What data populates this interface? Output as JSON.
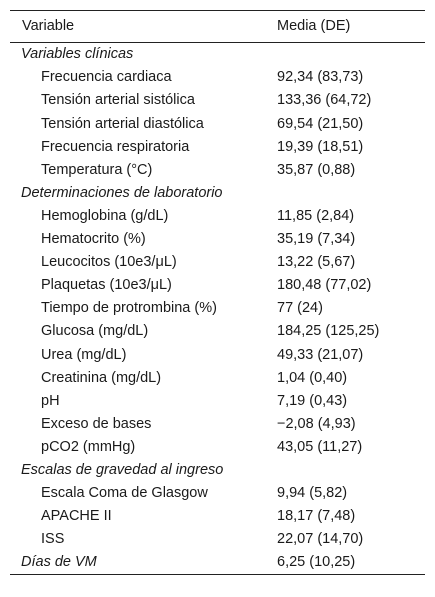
{
  "header": {
    "variable": "Variable",
    "value": "Media (DE)"
  },
  "sections": [
    {
      "title": "Variables clínicas",
      "rows": [
        {
          "label": "Frecuencia cardiaca",
          "value": "92,34 (83,73)"
        },
        {
          "label": "Tensión arterial sistólica",
          "value": "133,36 (64,72)"
        },
        {
          "label": "Tensión arterial diastólica",
          "value": "69,54 (21,50)"
        },
        {
          "label": "Frecuencia respiratoria",
          "value": "19,39 (18,51)"
        },
        {
          "label": "Temperatura (°C)",
          "value": "35,87 (0,88)"
        }
      ]
    },
    {
      "title": "Determinaciones de laboratorio",
      "rows": [
        {
          "label": "Hemoglobina (g/dL)",
          "value": "11,85 (2,84)"
        },
        {
          "label": "Hematocrito (%)",
          "value": "35,19 (7,34)"
        },
        {
          "label": "Leucocitos (10e3/μL)",
          "value": "13,22 (5,67)"
        },
        {
          "label": "Plaquetas (10e3/μL)",
          "value": "180,48 (77,02)"
        },
        {
          "label": "Tiempo de protrombina (%)",
          "value": "77 (24)"
        },
        {
          "label": "Glucosa (mg/dL)",
          "value": "184,25 (125,25)"
        },
        {
          "label": "Urea (mg/dL)",
          "value": "49,33 (21,07)"
        },
        {
          "label": "Creatinina (mg/dL)",
          "value": "1,04 (0,40)"
        },
        {
          "label": "pH",
          "value": "7,19 (0,43)"
        },
        {
          "label": "Exceso de bases",
          "value": "−2,08 (4,93)"
        },
        {
          "label": "pCO2 (mmHg)",
          "value": "43,05 (11,27)"
        }
      ]
    },
    {
      "title": "Escalas de gravedad al ingreso",
      "rows": [
        {
          "label": "Escala Coma de Glasgow",
          "value": "9,94 (5,82)"
        },
        {
          "label": "APACHE II",
          "value": "18,17 (7,48)"
        },
        {
          "label": "ISS",
          "value": "22,07 (14,70)"
        }
      ]
    }
  ],
  "footer_row": {
    "label": "Días de VM",
    "value": "6,25 (10,25)"
  }
}
